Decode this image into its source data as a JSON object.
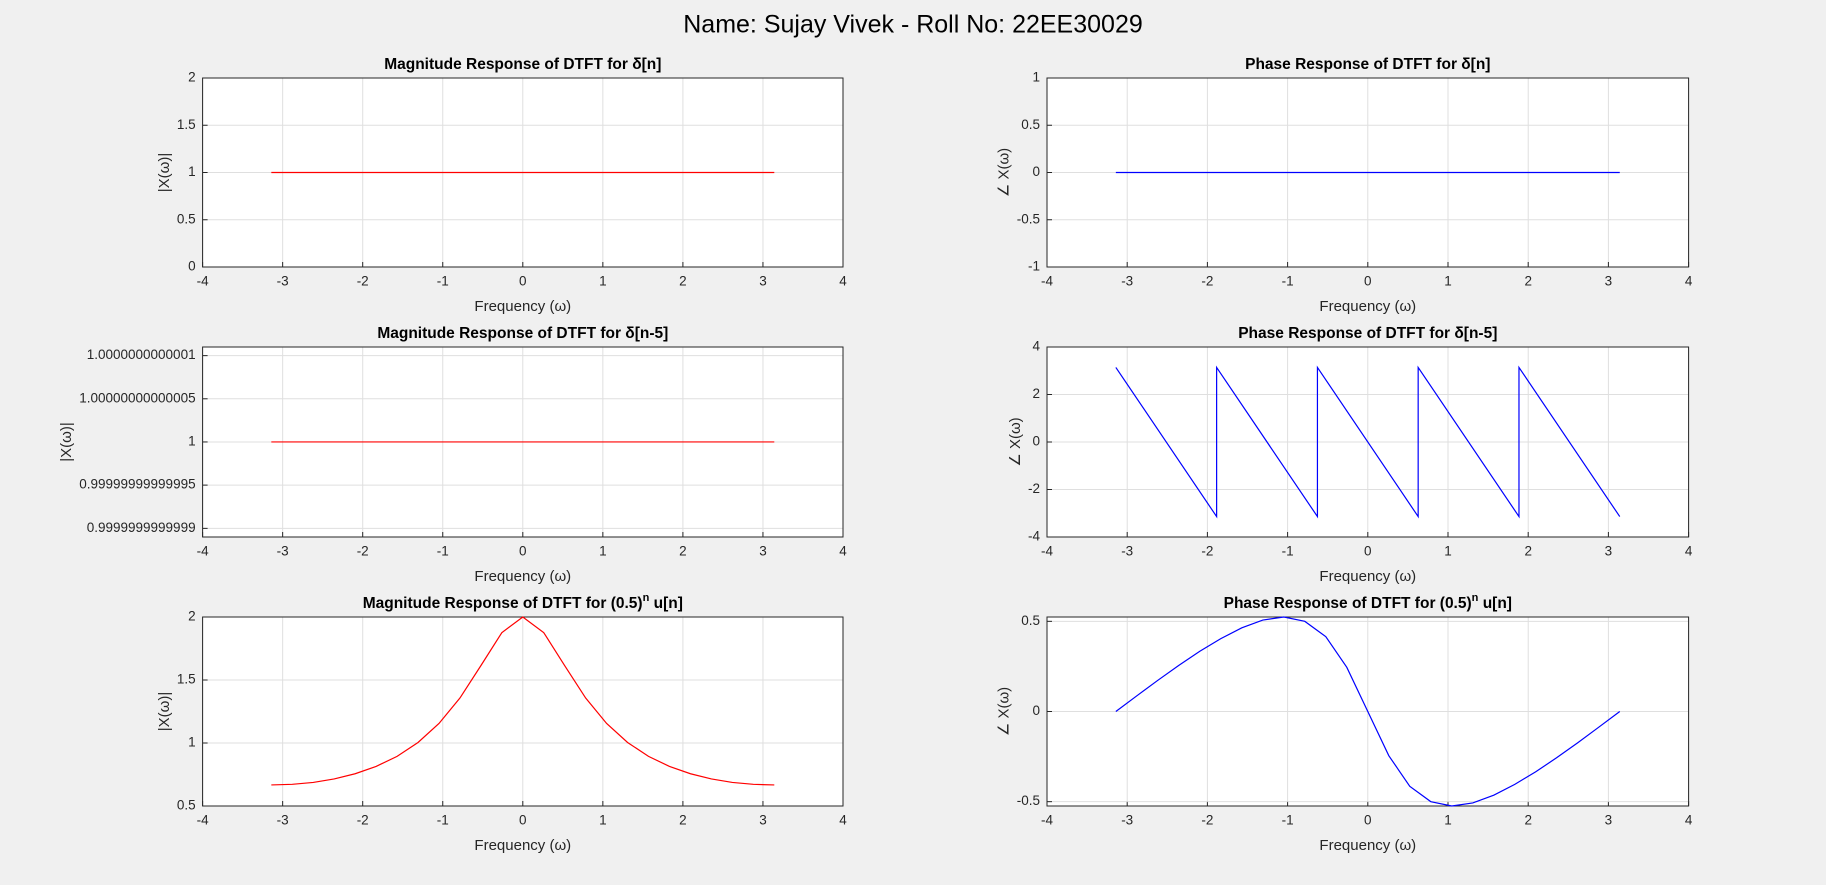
{
  "title": "Name: Sujay Vivek - Roll No: 22EE30029",
  "chart_data": [
    {
      "type": "line",
      "title": "Magnitude Response of DTFT for δ[n]",
      "xlabel": "Frequency (ω)",
      "ylabel": "|X(ω)|",
      "x": [
        -3.1416,
        3.1416
      ],
      "values": [
        1,
        1
      ],
      "color": "#ff0000",
      "xlim": [
        -4,
        4
      ],
      "xticks": [
        -4,
        -3,
        -2,
        -1,
        0,
        1,
        2,
        3,
        4
      ],
      "ylim": [
        0,
        2
      ],
      "yticks": [
        0,
        0.5,
        1,
        1.5,
        2
      ],
      "grid": true
    },
    {
      "type": "line",
      "title": "Phase Response of DTFT for δ[n]",
      "xlabel": "Frequency (ω)",
      "ylabel": "∠ X(ω)",
      "x": [
        -3.1416,
        3.1416
      ],
      "values": [
        0,
        0
      ],
      "color": "#0000ff",
      "xlim": [
        -4,
        4
      ],
      "xticks": [
        -4,
        -3,
        -2,
        -1,
        0,
        1,
        2,
        3,
        4
      ],
      "ylim": [
        -1,
        1
      ],
      "yticks": [
        -1,
        -0.5,
        0,
        0.5,
        1
      ],
      "grid": true
    },
    {
      "type": "line",
      "title": "Magnitude Response of DTFT for δ[n-5]",
      "xlabel": "Frequency (ω)",
      "ylabel": "|X(ω)|",
      "x": [
        -3.1416,
        3.1416
      ],
      "values": [
        1,
        1
      ],
      "color": "#ff0000",
      "xlim": [
        -4,
        4
      ],
      "xticks": [
        -4,
        -3,
        -2,
        -1,
        0,
        1,
        2,
        3,
        4
      ],
      "ylim": [
        0.99999999999989,
        1.00000000000011
      ],
      "yticks": [
        0.9999999999999,
        0.99999999999995,
        1,
        1.00000000000005,
        1.0000000000001
      ],
      "grid": true
    },
    {
      "type": "line",
      "title": "Phase Response of DTFT for δ[n-5]",
      "xlabel": "Frequency (ω)",
      "ylabel": "∠ X(ω)",
      "x": [
        -3.1416,
        -1.885,
        -1.885,
        -0.628,
        -0.628,
        0.628,
        0.628,
        1.885,
        1.885,
        3.1416
      ],
      "values": [
        3.14,
        -3.14,
        3.14,
        -3.14,
        3.14,
        -3.14,
        3.14,
        -3.14,
        3.14,
        -3.14
      ],
      "color": "#0000ff",
      "xlim": [
        -4,
        4
      ],
      "xticks": [
        -4,
        -3,
        -2,
        -1,
        0,
        1,
        2,
        3,
        4
      ],
      "ylim": [
        -4,
        4
      ],
      "yticks": [
        -4,
        -2,
        0,
        2,
        4
      ],
      "grid": true
    },
    {
      "type": "line",
      "title": "Magnitude Response of DTFT for (0.5)",
      "title_superscript": "n",
      "title_suffix": " u[n]",
      "xlabel": "Frequency (ω)",
      "ylabel": "|X(ω)|",
      "x": [
        -3.1416,
        -2.8798,
        -2.618,
        -2.3562,
        -2.0944,
        -1.8326,
        -1.5708,
        -1.309,
        -1.0472,
        -0.7854,
        -0.5236,
        -0.2618,
        0,
        0.2618,
        0.5236,
        0.7854,
        1.0472,
        1.309,
        1.5708,
        1.8326,
        2.0944,
        2.3562,
        2.618,
        2.8798,
        3.1416
      ],
      "values": [
        0.667,
        0.672,
        0.687,
        0.715,
        0.756,
        0.814,
        0.894,
        1.004,
        1.155,
        1.357,
        1.614,
        1.876,
        2,
        1.876,
        1.614,
        1.357,
        1.155,
        1.004,
        0.894,
        0.814,
        0.756,
        0.715,
        0.687,
        0.672,
        0.667
      ],
      "color": "#ff0000",
      "xlim": [
        -4,
        4
      ],
      "xticks": [
        -4,
        -3,
        -2,
        -1,
        0,
        1,
        2,
        3,
        4
      ],
      "ylim": [
        0.5,
        2
      ],
      "yticks": [
        0.5,
        1,
        1.5,
        2
      ],
      "grid": true
    },
    {
      "type": "line",
      "title": "Phase Response of DTFT for (0.5)",
      "title_superscript": "n",
      "title_suffix": " u[n]",
      "xlabel": "Frequency (ω)",
      "ylabel": "∠ X(ω)",
      "x": [
        -3.1416,
        -2.8798,
        -2.618,
        -2.3562,
        -2.0944,
        -1.8326,
        -1.5708,
        -1.309,
        -1.0472,
        -0.7854,
        -0.5236,
        -0.2618,
        0,
        0.2618,
        0.5236,
        0.7854,
        1.0472,
        1.309,
        1.5708,
        1.8326,
        2.0944,
        2.3562,
        2.618,
        2.8798,
        3.1416
      ],
      "values": [
        0,
        0.087,
        0.173,
        0.256,
        0.334,
        0.404,
        0.464,
        0.507,
        0.524,
        0.5,
        0.415,
        0.245,
        0,
        -0.245,
        -0.415,
        -0.5,
        -0.524,
        -0.507,
        -0.464,
        -0.404,
        -0.334,
        -0.256,
        -0.173,
        -0.087,
        0
      ],
      "color": "#0000ff",
      "xlim": [
        -4,
        4
      ],
      "xticks": [
        -4,
        -3,
        -2,
        -1,
        0,
        1,
        2,
        3,
        4
      ],
      "ylim": [
        -0.524,
        0.524
      ],
      "yticks": [
        -0.5,
        0,
        0.5
      ],
      "grid": true
    }
  ]
}
